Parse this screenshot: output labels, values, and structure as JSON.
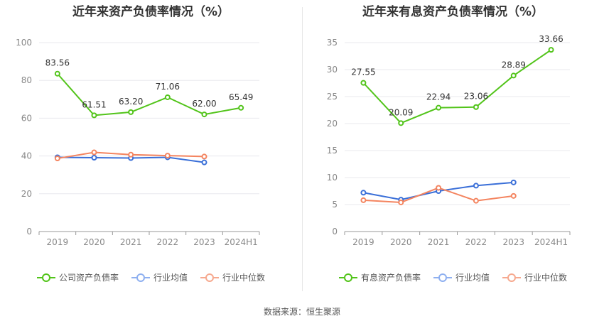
{
  "colors": {
    "company": "#52c41a",
    "industry_avg": "#3a6fd8",
    "industry_median": "#f4845f",
    "grid": "#e8e8ee",
    "axis_text": "#888888"
  },
  "source_text": "数据来源：恒生聚源",
  "chart_data": [
    {
      "type": "line",
      "title": "近年来资产负债率情况（%）",
      "categories": [
        "2019",
        "2020",
        "2021",
        "2022",
        "2023",
        "2024H1"
      ],
      "ylim": [
        0,
        100
      ],
      "yticks": [
        "0",
        "20",
        "40",
        "60",
        "80",
        "100"
      ],
      "series": [
        {
          "name": "公司资产负债率",
          "key": "company",
          "values": [
            83.56,
            61.51,
            63.2,
            71.06,
            62.0,
            65.49
          ],
          "labels": [
            "83.56",
            "61.51",
            "63.20",
            "71.06",
            "62.00",
            "65.49"
          ]
        },
        {
          "name": "行业均值",
          "key": "industry_avg",
          "values": [
            39.3,
            39.1,
            38.9,
            39.3,
            36.6,
            null
          ]
        },
        {
          "name": "行业中位数",
          "key": "industry_median",
          "values": [
            38.7,
            41.9,
            40.7,
            40.2,
            39.7,
            null
          ]
        }
      ],
      "legend": [
        "公司资产负债率",
        "行业均值",
        "行业中位数"
      ],
      "legend_position": "bottom",
      "grid": true
    },
    {
      "type": "line",
      "title": "近年来有息资产负债率情况（%）",
      "categories": [
        "2019",
        "2020",
        "2021",
        "2022",
        "2023",
        "2024H1"
      ],
      "ylim": [
        0,
        35
      ],
      "yticks": [
        "0",
        "5",
        "10",
        "15",
        "20",
        "25",
        "30",
        "35"
      ],
      "series": [
        {
          "name": "有息资产负债率",
          "key": "company",
          "values": [
            27.55,
            20.09,
            22.94,
            23.06,
            28.89,
            33.66
          ],
          "labels": [
            "27.55",
            "20.09",
            "22.94",
            "23.06",
            "28.89",
            "33.66"
          ]
        },
        {
          "name": "行业均值",
          "key": "industry_avg",
          "values": [
            7.2,
            5.9,
            7.5,
            8.5,
            9.1,
            null
          ]
        },
        {
          "name": "行业中位数",
          "key": "industry_median",
          "values": [
            5.8,
            5.4,
            8.1,
            5.7,
            6.6,
            null
          ]
        }
      ],
      "legend": [
        "有息资产负债率",
        "行业均值",
        "行业中位数"
      ],
      "legend_position": "bottom",
      "grid": true
    }
  ]
}
